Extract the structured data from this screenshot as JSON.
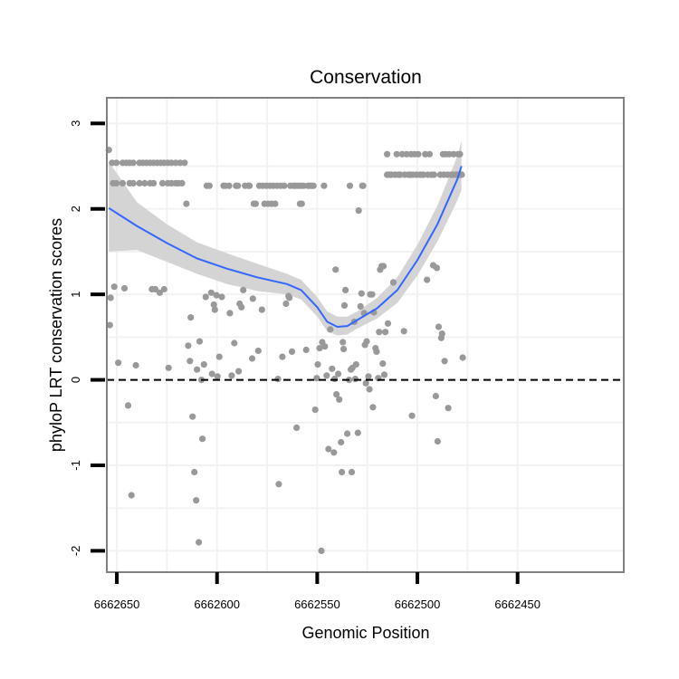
{
  "chart_data": {
    "type": "scatter",
    "title": "Conservation",
    "xlabel": "Genomic Position",
    "ylabel": "phyloP LRT conservation scores",
    "xlim": [
      6662655,
      6662397
    ],
    "ylim": [
      -2.25,
      3.3
    ],
    "x_reversed": true,
    "x_ticks": [
      6662650,
      6662600,
      6662550,
      6662500,
      6662450
    ],
    "x_tick_labels": [
      "6662650",
      "6662600",
      "6662550",
      "6662500",
      "6662450"
    ],
    "y_ticks": [
      -2,
      -1,
      0,
      1,
      2,
      3
    ],
    "y_tick_labels": [
      "-2",
      "-1",
      "0",
      "1",
      "2",
      "3"
    ],
    "grid": true,
    "reference_line": {
      "y": 0,
      "style": "dashed",
      "color": "#000000"
    },
    "colors": {
      "points": "#999999",
      "smooth_line": "#3366FF",
      "confidence_band": "#d4d4d4",
      "panel_border": "#808080",
      "grid": "#f2f2f2"
    },
    "points": [
      [
        6662654.0,
        2.69
      ],
      [
        6662653.1,
        0.96
      ],
      [
        6662653.5,
        0.64
      ],
      [
        6662651.3,
        1.09
      ],
      [
        6662652.4,
        2.54
      ],
      [
        6662650.2,
        2.54
      ],
      [
        6662647.1,
        2.54
      ],
      [
        6662645.3,
        2.54
      ],
      [
        6662643.6,
        2.54
      ],
      [
        6662641.8,
        2.54
      ],
      [
        6662651.9,
        2.3
      ],
      [
        6662650.2,
        2.3
      ],
      [
        6662647.1,
        2.3
      ],
      [
        6662643.6,
        2.3
      ],
      [
        6662641.8,
        2.3
      ],
      [
        6662649.3,
        0.2
      ],
      [
        6662646.2,
        1.07
      ],
      [
        6662644.4,
        -0.3
      ],
      [
        6662642.7,
        -1.35
      ],
      [
        6662640.5,
        0.17
      ],
      [
        6662638.7,
        2.54
      ],
      [
        6662637.0,
        2.54
      ],
      [
        6662635.2,
        2.54
      ],
      [
        6662633.4,
        2.54
      ],
      [
        6662631.7,
        2.54
      ],
      [
        6662629.9,
        2.54
      ],
      [
        6662628.1,
        2.54
      ],
      [
        6662626.4,
        2.54
      ],
      [
        6662624.6,
        2.54
      ],
      [
        6662622.8,
        2.54
      ],
      [
        6662620.6,
        2.54
      ],
      [
        6662618.4,
        2.54
      ],
      [
        6662616.2,
        2.54
      ],
      [
        6662638.7,
        2.3
      ],
      [
        6662636.1,
        2.3
      ],
      [
        6662633.4,
        2.3
      ],
      [
        6662631.7,
        2.3
      ],
      [
        6662627.2,
        2.3
      ],
      [
        6662624.6,
        2.3
      ],
      [
        6662622.8,
        2.3
      ],
      [
        6662620.6,
        2.3
      ],
      [
        6662619.3,
        2.3
      ],
      [
        6662617.5,
        2.3
      ],
      [
        6662632.5,
        1.06
      ],
      [
        6662630.8,
        1.06
      ],
      [
        6662628.6,
        1.02
      ],
      [
        6662626.4,
        1.06
      ],
      [
        6662624.2,
        0.14
      ],
      [
        6662615.3,
        2.06
      ],
      [
        6662614.4,
        0.4
      ],
      [
        6662613.5,
        0.22
      ],
      [
        6662613.1,
        0.73
      ],
      [
        6662612.2,
        -0.43
      ],
      [
        6662611.3,
        -1.08
      ],
      [
        6662610.4,
        -1.41
      ],
      [
        6662610.0,
        0.12
      ],
      [
        6662609.1,
        -1.9
      ],
      [
        6662608.7,
        0.45
      ],
      [
        6662607.8,
        0.0
      ],
      [
        6662607.3,
        -0.69
      ],
      [
        6662606.5,
        0.18
      ],
      [
        6662605.6,
        0.97
      ],
      [
        6662605.1,
        2.27
      ],
      [
        6662603.8,
        2.27
      ],
      [
        6662602.9,
        1.02
      ],
      [
        6662602.5,
        0.07
      ],
      [
        6662601.6,
        0.88
      ],
      [
        6662601.1,
        0.82
      ],
      [
        6662600.3,
        0.99
      ],
      [
        6662599.8,
        0.04
      ],
      [
        6662598.9,
        0.27
      ],
      [
        6662597.6,
        0.97
      ],
      [
        6662596.7,
        2.27
      ],
      [
        6662595.8,
        2.27
      ],
      [
        6662594.0,
        2.27
      ],
      [
        6662593.6,
        0.78
      ],
      [
        6662592.7,
        0.05
      ],
      [
        6662591.4,
        0.43
      ],
      [
        6662590.5,
        2.27
      ],
      [
        6662589.6,
        2.27
      ],
      [
        6662589.2,
        0.1
      ],
      [
        6662588.7,
        0.89
      ],
      [
        6662587.8,
        0.85
      ],
      [
        6662586.9,
        1.05
      ],
      [
        6662586.0,
        2.27
      ],
      [
        6662584.3,
        2.27
      ],
      [
        6662583.8,
        2.27
      ],
      [
        6662582.5,
        0.25
      ],
      [
        6662582.1,
        0.95
      ],
      [
        6662581.6,
        2.06
      ],
      [
        6662580.7,
        2.06
      ],
      [
        6662579.4,
        0.34
      ],
      [
        6662578.9,
        2.27
      ],
      [
        6662577.6,
        0.82
      ],
      [
        6662577.2,
        2.27
      ],
      [
        6662576.3,
        2.06
      ],
      [
        6662575.4,
        2.27
      ],
      [
        6662574.5,
        2.06
      ],
      [
        6662573.6,
        2.27
      ],
      [
        6662572.7,
        2.06
      ],
      [
        6662571.9,
        2.27
      ],
      [
        6662571.0,
        2.06
      ],
      [
        6662570.1,
        2.27
      ],
      [
        6662569.6,
        0.01
      ],
      [
        6662569.2,
        -1.22
      ],
      [
        6662568.3,
        2.27
      ],
      [
        6662567.4,
        0.27
      ],
      [
        6662566.5,
        2.27
      ],
      [
        6662565.6,
        0.89
      ],
      [
        6662564.3,
        0.98
      ],
      [
        6662563.9,
        0.96
      ],
      [
        6662563.4,
        2.27
      ],
      [
        6662562.6,
        0.33
      ],
      [
        6662561.7,
        2.27
      ],
      [
        6662560.8,
        2.27
      ],
      [
        6662560.3,
        -0.56
      ],
      [
        6662559.4,
        2.27
      ],
      [
        6662558.6,
        2.06
      ],
      [
        6662558.1,
        2.27
      ],
      [
        6662557.7,
        2.06
      ],
      [
        6662556.8,
        2.27
      ],
      [
        6662555.5,
        0.35
      ],
      [
        6662554.6,
        2.27
      ],
      [
        6662553.7,
        2.27
      ],
      [
        6662552.8,
        2.27
      ],
      [
        6662551.9,
        2.27
      ],
      [
        6662551.0,
        -0.35
      ],
      [
        6662550.2,
        0.02
      ],
      [
        6662549.7,
        0.18
      ],
      [
        6662548.8,
        0.37
      ],
      [
        6662547.9,
        -2.0
      ],
      [
        6662547.5,
        0.44
      ],
      [
        6662546.6,
        2.27
      ],
      [
        6662546.2,
        0.39
      ],
      [
        6662545.3,
        0.05
      ],
      [
        6662544.4,
        -0.81
      ],
      [
        6662543.5,
        0.59
      ],
      [
        6662542.6,
        0.13
      ],
      [
        6662541.7,
        -0.85
      ],
      [
        6662541.3,
        0.01
      ],
      [
        6662540.8,
        1.29
      ],
      [
        6662540.4,
        -0.17
      ],
      [
        6662539.5,
        0.07
      ],
      [
        6662539.0,
        -0.23
      ],
      [
        6662538.1,
        -0.73
      ],
      [
        6662537.7,
        -1.08
      ],
      [
        6662537.2,
        0.44
      ],
      [
        6662536.8,
        0.36
      ],
      [
        6662536.4,
        0.87
      ],
      [
        6662535.9,
        1.05
      ],
      [
        6662535.0,
        -0.63
      ],
      [
        6662534.1,
        0.0
      ],
      [
        6662533.7,
        2.27
      ],
      [
        6662533.2,
        0.12
      ],
      [
        6662532.8,
        -1.08
      ],
      [
        6662532.4,
        0.14
      ],
      [
        6662531.5,
        0.68
      ],
      [
        6662531.0,
        0.01
      ],
      [
        6662530.6,
        0.18
      ],
      [
        6662529.7,
        -0.62
      ],
      [
        6662529.3,
        1.98
      ],
      [
        6662528.4,
        0.86
      ],
      [
        6662527.9,
        1.01
      ],
      [
        6662527.5,
        2.27
      ],
      [
        6662527.1,
        2.27
      ],
      [
        6662526.6,
        0.78
      ],
      [
        6662526.2,
        0.41
      ],
      [
        6662525.7,
        -0.04
      ],
      [
        6662525.3,
        0.45
      ],
      [
        6662524.4,
        0.04
      ],
      [
        6662523.9,
        -0.11
      ],
      [
        6662523.5,
        1.0
      ],
      [
        6662522.6,
        1.0
      ],
      [
        6662522.2,
        -0.32
      ],
      [
        6662521.7,
        0.79
      ],
      [
        6662520.9,
        0.37
      ],
      [
        6662520.4,
        0.33
      ],
      [
        6662519.5,
        0.02
      ],
      [
        6662519.1,
        0.56
      ],
      [
        6662518.6,
        1.29
      ],
      [
        6662517.8,
        1.33
      ],
      [
        6662517.3,
        0.19
      ],
      [
        6662516.9,
        1.33
      ],
      [
        6662516.5,
        0.06
      ],
      [
        6662516.0,
        0.56
      ],
      [
        6662515.1,
        2.64
      ],
      [
        6662515.1,
        2.4
      ],
      [
        6662514.7,
        0.66
      ],
      [
        6662513.8,
        2.4
      ],
      [
        6662512.9,
        2.4
      ],
      [
        6662512.0,
        1.14
      ],
      [
        6662511.1,
        2.4
      ],
      [
        6662510.3,
        2.64
      ],
      [
        6662509.4,
        2.4
      ],
      [
        6662508.5,
        2.4
      ],
      [
        6662507.6,
        2.64
      ],
      [
        6662506.7,
        0.57
      ],
      [
        6662506.3,
        2.4
      ],
      [
        6662505.4,
        2.64
      ],
      [
        6662504.5,
        2.4
      ],
      [
        6662503.6,
        2.4
      ],
      [
        6662503.2,
        2.64
      ],
      [
        6662502.7,
        -0.42
      ],
      [
        6662502.3,
        2.4
      ],
      [
        6662501.4,
        2.64
      ],
      [
        6662500.5,
        2.4
      ],
      [
        6662499.6,
        2.64
      ],
      [
        6662498.8,
        2.4
      ],
      [
        6662497.9,
        2.4
      ],
      [
        6662497.0,
        2.4
      ],
      [
        6662496.1,
        2.64
      ],
      [
        6662495.2,
        1.17
      ],
      [
        6662494.8,
        2.4
      ],
      [
        6662493.9,
        2.64
      ],
      [
        6662493.0,
        2.4
      ],
      [
        6662492.1,
        1.34
      ],
      [
        6662491.7,
        2.4
      ],
      [
        6662490.8,
        -0.19
      ],
      [
        6662490.3,
        1.31
      ],
      [
        6662489.9,
        -0.72
      ],
      [
        6662489.4,
        0.62
      ],
      [
        6662488.6,
        2.4
      ],
      [
        6662488.1,
        0.49
      ],
      [
        6662487.7,
        0.54
      ],
      [
        6662487.2,
        2.64
      ],
      [
        6662486.8,
        2.4
      ],
      [
        6662486.4,
        0.22
      ],
      [
        6662485.9,
        2.64
      ],
      [
        6662485.0,
        2.4
      ],
      [
        6662484.6,
        -0.33
      ],
      [
        6662484.1,
        2.64
      ],
      [
        6662483.2,
        2.4
      ],
      [
        6662482.4,
        2.4
      ],
      [
        6662481.9,
        2.64
      ],
      [
        6662481.0,
        2.4
      ],
      [
        6662480.1,
        2.4
      ],
      [
        6662479.7,
        2.64
      ],
      [
        6662479.2,
        2.4
      ],
      [
        6662478.8,
        2.64
      ],
      [
        6662477.9,
        2.4
      ],
      [
        6662477.4,
        0.26
      ]
    ],
    "smooth": {
      "x": [
        6662654,
        6662640,
        6662625,
        6662610,
        6662595,
        6662580,
        6662565,
        6662558,
        6662550,
        6662545,
        6662540,
        6662535,
        6662530,
        6662520,
        6662510,
        6662500,
        6662490,
        6662480,
        6662478
      ],
      "y": [
        2.01,
        1.8,
        1.6,
        1.42,
        1.3,
        1.2,
        1.12,
        1.05,
        0.85,
        0.68,
        0.62,
        0.63,
        0.7,
        0.84,
        1.05,
        1.4,
        1.82,
        2.35,
        2.5
      ],
      "lower": [
        1.5,
        1.52,
        1.38,
        1.24,
        1.12,
        1.04,
        1.0,
        0.94,
        0.74,
        0.57,
        0.52,
        0.53,
        0.6,
        0.72,
        0.9,
        1.22,
        1.62,
        2.1,
        2.22
      ],
      "upper": [
        2.55,
        2.08,
        1.82,
        1.61,
        1.48,
        1.36,
        1.24,
        1.17,
        0.97,
        0.8,
        0.74,
        0.74,
        0.8,
        0.96,
        1.2,
        1.58,
        2.04,
        2.62,
        2.8
      ]
    }
  }
}
